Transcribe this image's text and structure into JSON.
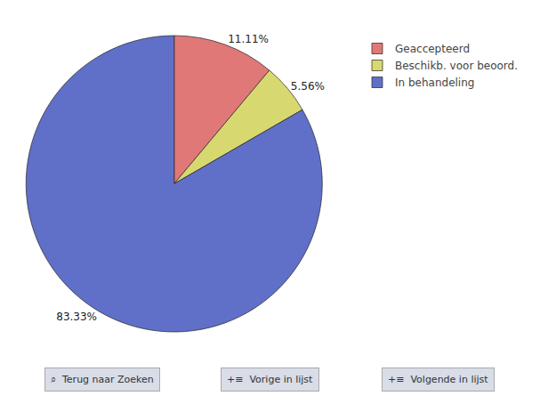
{
  "chart_data": {
    "type": "pie",
    "categories": [
      "Geaccepteerd",
      "Beschikb. voor beoord.",
      "In behandeling"
    ],
    "values": [
      11.11,
      5.56,
      83.33
    ],
    "value_labels": [
      "11.11%",
      "5.56%",
      "83.33%"
    ],
    "colors": [
      "#e07878",
      "#d8d870",
      "#6070c8"
    ],
    "data_labels": true,
    "legend": "upper right",
    "annotations": [
      "⌕  Terug naar Zoeken",
      "+≡  Vorige in lijst",
      "+≡  Volgende in lijst"
    ]
  }
}
